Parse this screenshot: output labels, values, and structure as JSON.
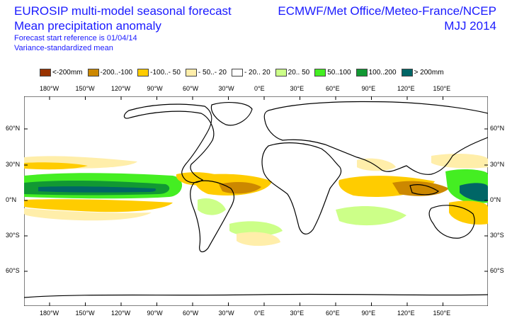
{
  "header": {
    "title_line1": "EUROSIP multi-model seasonal forecast",
    "title_line2": "Mean precipitation anomaly",
    "subtitle1": "Forecast start reference is 01/04/14",
    "subtitle2": "Variance-standardized mean",
    "centers": "ECMWF/Met Office/Meteo-France/NCEP",
    "season": "MJJ 2014"
  },
  "legend": [
    {
      "label": "<-200mm",
      "color": "#993300"
    },
    {
      "label": "-200..-100",
      "color": "#cc8800"
    },
    {
      "label": "-100..- 50",
      "color": "#ffcc00"
    },
    {
      "label": "- 50..- 20",
      "color": "#ffeeaa"
    },
    {
      "label": "- 20.. 20",
      "color": "#ffffff"
    },
    {
      "label": "20.. 50",
      "color": "#ccff88"
    },
    {
      "label": "50..100",
      "color": "#44ee22"
    },
    {
      "label": "100..200",
      "color": "#119933"
    },
    {
      "label": "> 200mm",
      "color": "#006666"
    }
  ],
  "lon_ticks": [
    "180°W",
    "150°W",
    "120°W",
    "90°W",
    "60°W",
    "30°W",
    "0°E",
    "30°E",
    "60°E",
    "90°E",
    "120°E",
    "150°E"
  ],
  "lat_ticks": [
    "60°N",
    "30°N",
    "0°N",
    "30°S",
    "60°S"
  ],
  "colors": {
    "title_blue": "#1a1aff",
    "coast": "#000000"
  }
}
